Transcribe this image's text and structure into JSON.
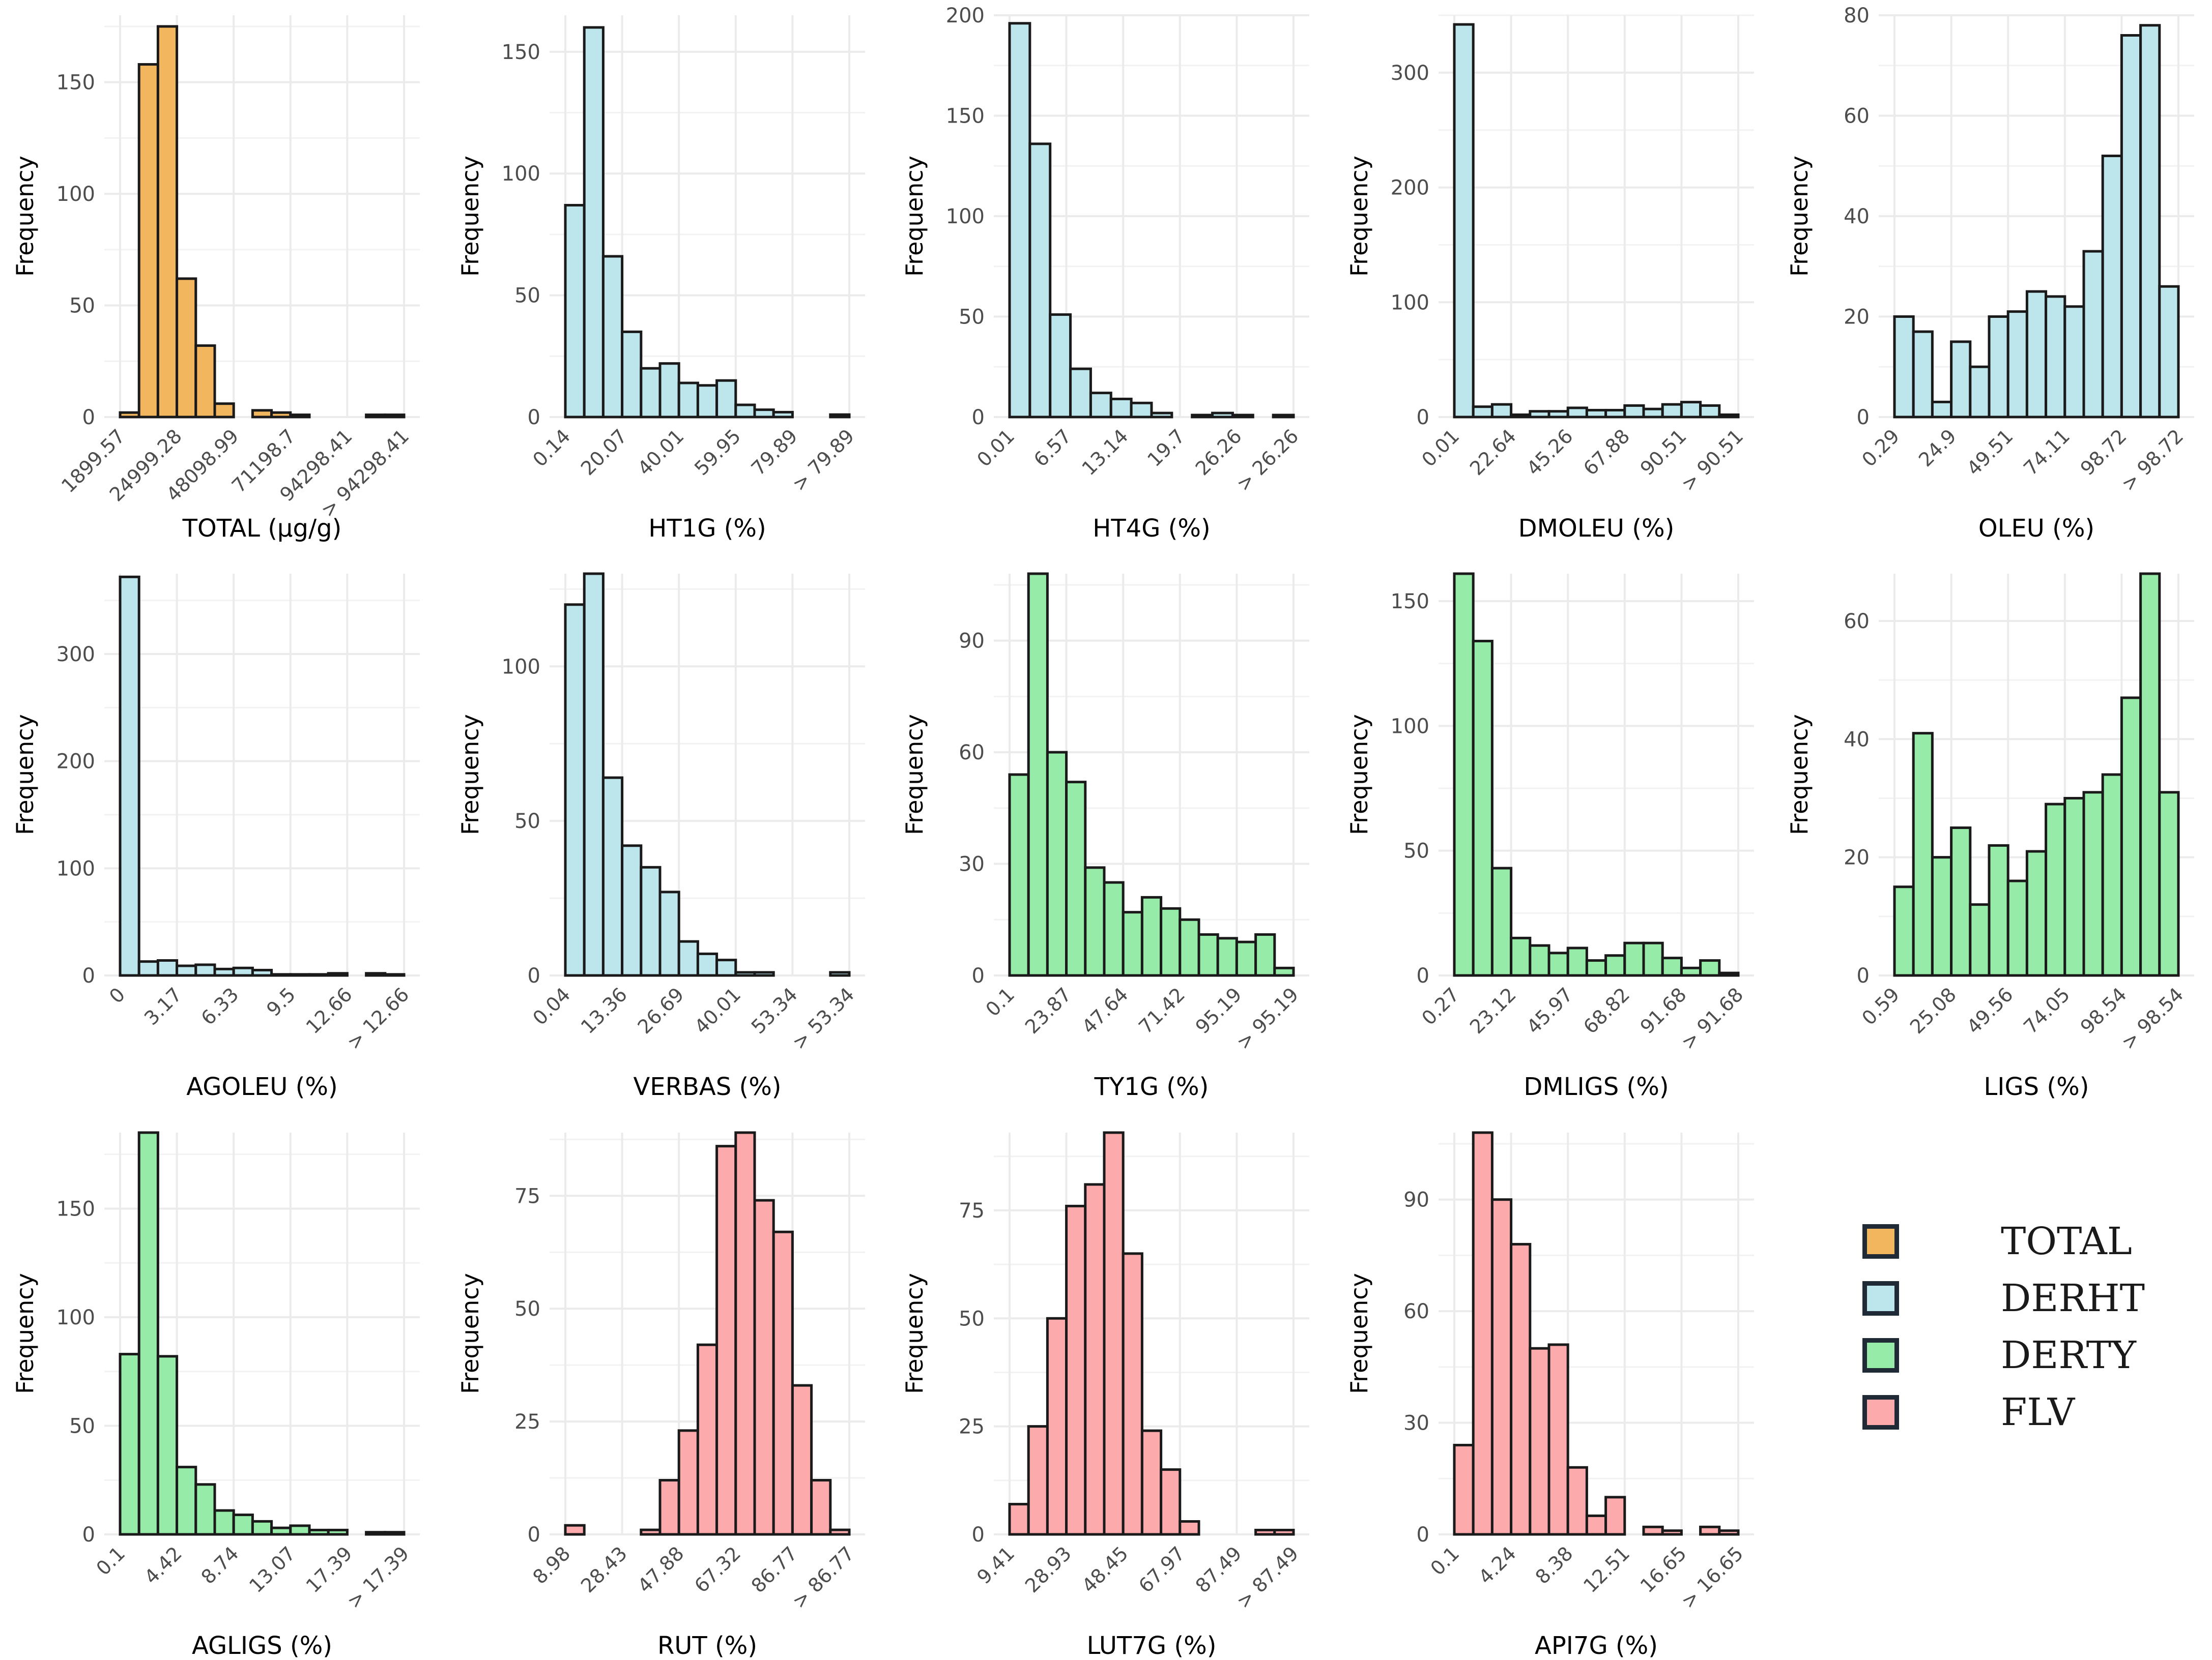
{
  "legend": [
    {
      "label": "TOTAL",
      "color": "#F2B65E"
    },
    {
      "label": "DERHT",
      "color": "#BDE5EC"
    },
    {
      "label": "DERTY",
      "color": "#95EBA7"
    },
    {
      "label": "FLV",
      "color": "#FDAAAD"
    }
  ],
  "chart_data": [
    {
      "type": "bar",
      "title": "",
      "xlabel": "TOTAL (µg/g)",
      "ylabel": "Frequency",
      "group": "TOTAL",
      "xticks": [
        "1899.57",
        "24999.28",
        "48098.99",
        "71198.7",
        "94298.41",
        "> 94298.41"
      ],
      "yticks": [
        0,
        50,
        100,
        150
      ],
      "ylim": [
        0,
        180
      ],
      "values": [
        2,
        158,
        175,
        62,
        32,
        6,
        0,
        3,
        2,
        1,
        0,
        0,
        0,
        1,
        1
      ]
    },
    {
      "type": "bar",
      "title": "",
      "xlabel": "HT1G (%)",
      "ylabel": "Frequency",
      "group": "DERHT",
      "xticks": [
        "0.14",
        "20.07",
        "40.01",
        "59.95",
        "79.89",
        "> 79.89"
      ],
      "yticks": [
        0,
        50,
        100,
        150
      ],
      "ylim": [
        0,
        165
      ],
      "values": [
        87,
        160,
        66,
        35,
        20,
        22,
        14,
        13,
        15,
        5,
        3,
        2,
        0,
        0,
        1
      ]
    },
    {
      "type": "bar",
      "title": "",
      "xlabel": "HT4G (%)",
      "ylabel": "Frequency",
      "group": "DERHT",
      "xticks": [
        "0.01",
        "6.57",
        "13.14",
        "19.7",
        "26.26",
        "> 26.26"
      ],
      "yticks": [
        0,
        50,
        100,
        150,
        200
      ],
      "ylim": [
        0,
        200
      ],
      "values": [
        196,
        136,
        51,
        24,
        12,
        9,
        7,
        2,
        0,
        1,
        2,
        1,
        0,
        1
      ]
    },
    {
      "type": "bar",
      "title": "",
      "xlabel": "DMOLEU (%)",
      "ylabel": "Frequency",
      "group": "DERHT",
      "xticks": [
        "0.01",
        "22.64",
        "45.26",
        "67.88",
        "90.51",
        "> 90.51"
      ],
      "yticks": [
        0,
        100,
        200,
        300
      ],
      "ylim": [
        0,
        350
      ],
      "values": [
        342,
        9,
        11,
        2,
        5,
        5,
        8,
        6,
        6,
        10,
        7,
        11,
        13,
        10,
        2
      ]
    },
    {
      "type": "bar",
      "title": "",
      "xlabel": "OLEU (%)",
      "ylabel": "Frequency",
      "group": "DERHT",
      "xticks": [
        "0.29",
        "24.9",
        "49.51",
        "74.11",
        "98.72",
        "> 98.72"
      ],
      "yticks": [
        0,
        20,
        40,
        60,
        80
      ],
      "ylim": [
        0,
        80
      ],
      "values": [
        20,
        17,
        3,
        15,
        10,
        20,
        21,
        25,
        24,
        22,
        33,
        52,
        76,
        78,
        26
      ]
    },
    {
      "type": "bar",
      "title": "",
      "xlabel": "AGOLEU (%)",
      "ylabel": "Frequency",
      "group": "DERHT",
      "xticks": [
        "0",
        "3.17",
        "6.33",
        "9.5",
        "12.66",
        "> 12.66"
      ],
      "yticks": [
        0,
        100,
        200,
        300
      ],
      "ylim": [
        0,
        375
      ],
      "values": [
        372,
        13,
        14,
        9,
        10,
        6,
        7,
        5,
        1,
        1,
        1,
        2,
        0,
        2,
        1
      ]
    },
    {
      "type": "bar",
      "title": "",
      "xlabel": "VERBAS (%)",
      "ylabel": "Frequency",
      "group": "DERHT",
      "xticks": [
        "0.04",
        "13.36",
        "26.69",
        "40.01",
        "53.34",
        "> 53.34"
      ],
      "yticks": [
        0,
        50,
        100
      ],
      "ylim": [
        0,
        130
      ],
      "values": [
        120,
        130,
        64,
        42,
        35,
        27,
        11,
        7,
        5,
        1,
        1,
        0,
        0,
        0,
        1
      ]
    },
    {
      "type": "bar",
      "title": "",
      "xlabel": "TY1G (%)",
      "ylabel": "Frequency",
      "group": "DERTY",
      "xticks": [
        "0.1",
        "23.87",
        "47.64",
        "71.42",
        "95.19",
        "> 95.19"
      ],
      "yticks": [
        0,
        30,
        60,
        90
      ],
      "ylim": [
        0,
        108
      ],
      "values": [
        54,
        108,
        60,
        52,
        29,
        25,
        17,
        21,
        18,
        15,
        11,
        10,
        9,
        11,
        2
      ]
    },
    {
      "type": "bar",
      "title": "",
      "xlabel": "DMLIGS (%)",
      "ylabel": "Frequency",
      "group": "DERTY",
      "xticks": [
        "0.27",
        "23.12",
        "45.97",
        "68.82",
        "91.68",
        "> 91.68"
      ],
      "yticks": [
        0,
        50,
        100,
        150
      ],
      "ylim": [
        0,
        161
      ],
      "values": [
        161,
        134,
        43,
        15,
        12,
        9,
        11,
        6,
        8,
        13,
        13,
        7,
        3,
        6,
        1
      ]
    },
    {
      "type": "bar",
      "title": "",
      "xlabel": "LIGS (%)",
      "ylabel": "Frequency",
      "group": "DERTY",
      "xticks": [
        "0.59",
        "25.08",
        "49.56",
        "74.05",
        "98.54",
        "> 98.54"
      ],
      "yticks": [
        0,
        20,
        40,
        60
      ],
      "ylim": [
        0,
        68
      ],
      "values": [
        15,
        41,
        20,
        25,
        12,
        22,
        16,
        21,
        29,
        30,
        31,
        34,
        47,
        68,
        31
      ]
    },
    {
      "type": "bar",
      "title": "",
      "xlabel": "AGLIGS (%)",
      "ylabel": "Frequency",
      "group": "DERTY",
      "xticks": [
        "0.1",
        "4.42",
        "8.74",
        "13.07",
        "17.39",
        "> 17.39"
      ],
      "yticks": [
        0,
        50,
        100,
        150
      ],
      "ylim": [
        0,
        185
      ],
      "values": [
        83,
        185,
        82,
        31,
        23,
        11,
        9,
        6,
        3,
        4,
        2,
        2,
        0,
        1,
        1
      ]
    },
    {
      "type": "bar",
      "title": "",
      "xlabel": "RUT (%)",
      "ylabel": "Frequency",
      "group": "FLV",
      "xticks": [
        "8.98",
        "28.43",
        "47.88",
        "67.32",
        "86.77",
        "> 86.77"
      ],
      "yticks": [
        0,
        25,
        50,
        75
      ],
      "ylim": [
        0,
        89
      ],
      "values": [
        2,
        0,
        0,
        0,
        1,
        12,
        23,
        42,
        86,
        89,
        74,
        67,
        33,
        12,
        1
      ]
    },
    {
      "type": "bar",
      "title": "",
      "xlabel": "LUT7G (%)",
      "ylabel": "Frequency",
      "group": "FLV",
      "xticks": [
        "9.41",
        "28.93",
        "48.45",
        "67.97",
        "87.49",
        "> 87.49"
      ],
      "yticks": [
        0,
        25,
        50,
        75
      ],
      "ylim": [
        0,
        93
      ],
      "values": [
        7,
        25,
        50,
        76,
        81,
        93,
        65,
        24,
        15,
        3,
        0,
        0,
        0,
        1,
        1
      ]
    },
    {
      "type": "bar",
      "title": "",
      "xlabel": "API7G (%)",
      "ylabel": "Frequency",
      "group": "FLV",
      "xticks": [
        "0.1",
        "4.24",
        "8.38",
        "12.51",
        "16.65",
        "> 16.65"
      ],
      "yticks": [
        0,
        30,
        60,
        90
      ],
      "ylim": [
        0,
        108
      ],
      "values": [
        24,
        108,
        90,
        78,
        50,
        51,
        18,
        5,
        10,
        0,
        2,
        1,
        0,
        2,
        1
      ]
    }
  ]
}
